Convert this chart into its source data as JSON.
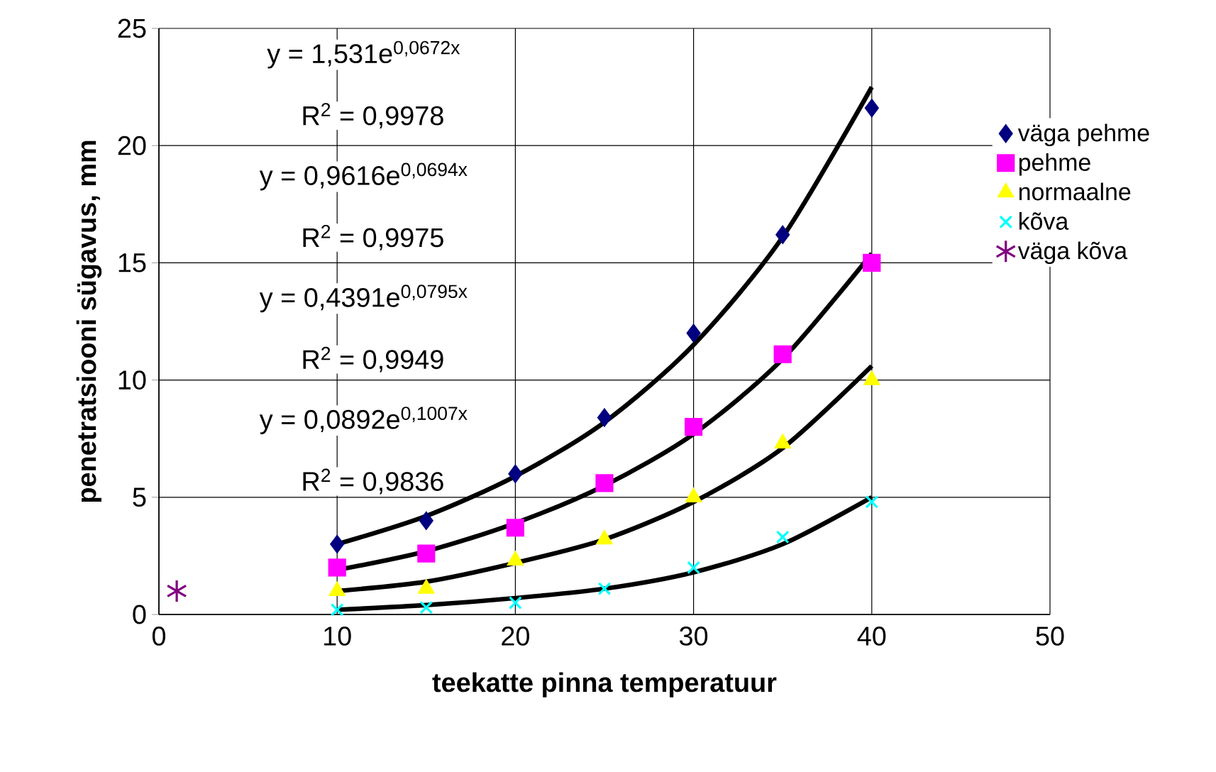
{
  "chart_data": {
    "type": "scatter",
    "xlabel": "teekatte pinna temperatuur",
    "ylabel": "penetratsiooni sügavus, mm",
    "xlim": [
      0,
      50
    ],
    "ylim": [
      0,
      25
    ],
    "xticks": [
      0,
      10,
      20,
      30,
      40,
      50
    ],
    "yticks": [
      0,
      5,
      10,
      15,
      20,
      25
    ],
    "grid": true,
    "legend": "right",
    "series": [
      {
        "name": "väga pehme",
        "color": "#000080",
        "marker": "diamond",
        "x": [
          10,
          15,
          20,
          25,
          30,
          35,
          40
        ],
        "values": [
          3,
          4,
          6,
          8.4,
          12,
          16.2,
          21.6
        ]
      },
      {
        "name": "pehme",
        "color": "#ff00ff",
        "marker": "square",
        "x": [
          10,
          15,
          20,
          25,
          30,
          35,
          40
        ],
        "values": [
          2,
          2.6,
          3.7,
          5.6,
          8,
          11.1,
          15
        ]
      },
      {
        "name": "normaalne",
        "color": "#ffff00",
        "marker": "triangle",
        "x": [
          10,
          15,
          20,
          25,
          30,
          35,
          40
        ],
        "values": [
          1,
          1.1,
          2.3,
          3.2,
          5,
          7.3,
          10
        ]
      },
      {
        "name": "kõva",
        "color": "#00ffff",
        "marker": "cross",
        "x": [
          10,
          15,
          20,
          25,
          30,
          35,
          40
        ],
        "values": [
          0.2,
          0.3,
          0.5,
          1.1,
          2,
          3.3,
          4.8
        ]
      },
      {
        "name": "väga kõva",
        "color": "#800080",
        "x": [
          1
        ],
        "values": [
          1
        ]
      },
      {
        "type": "line",
        "color": "#000000",
        "x": [
          10,
          15,
          20,
          25,
          30,
          35,
          40
        ],
        "values": [
          3,
          4.2,
          5.9,
          8.2,
          11.5,
          16.1,
          22.5
        ]
      },
      {
        "type": "line",
        "color": "#000000",
        "x": [
          10,
          15,
          20,
          25,
          30,
          35,
          40
        ],
        "values": [
          1.9,
          2.7,
          3.9,
          5.5,
          7.7,
          10.9,
          15.4
        ]
      },
      {
        "type": "line",
        "color": "#000000",
        "x": [
          10,
          15,
          20,
          25,
          30,
          35,
          40
        ],
        "values": [
          1,
          1.4,
          2.2,
          3.2,
          4.8,
          7.1,
          10.6
        ]
      },
      {
        "type": "line",
        "color": "#000000",
        "x": [
          10,
          15,
          20,
          25,
          30,
          35,
          40
        ],
        "values": [
          0.2,
          0.4,
          0.7,
          1.1,
          1.8,
          3,
          5
        ]
      }
    ],
    "annotations": [
      "y = 1,531e$^{0,0672x}$",
      "R$^{2}$ = 0,9978",
      "y = 0,9616e$^{0,0694x}$",
      "R$^{2}$ = 0,9975",
      "y = 0,4391e$^{0,0795x}$",
      "R$^{2}$ = 0,9949",
      "y = 0,0892e$^{0,1007x}$",
      "R$^{2}$ = 0,9836"
    ]
  }
}
